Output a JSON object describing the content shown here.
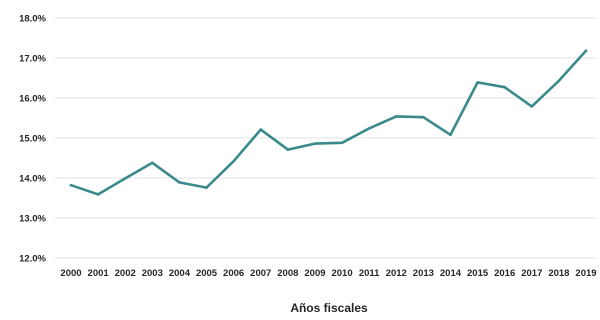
{
  "chart_data": {
    "type": "line",
    "title": "",
    "xlabel": "Años fiscales",
    "ylabel": "",
    "ylim": [
      12.0,
      18.0
    ],
    "yticks": [
      12.0,
      13.0,
      14.0,
      15.0,
      16.0,
      17.0,
      18.0
    ],
    "ytick_labels": [
      "12.0%",
      "13.0%",
      "14.0%",
      "15.0%",
      "16.0%",
      "17.0%",
      "18.0%"
    ],
    "grid": true,
    "legend": "none",
    "line_color": "#3a8a8c",
    "grid_color": "#e3e3e3",
    "categories": [
      "2000",
      "2001",
      "2002",
      "2003",
      "2004",
      "2005",
      "2006",
      "2007",
      "2008",
      "2009",
      "2010",
      "2011",
      "2012",
      "2013",
      "2014",
      "2015",
      "2016",
      "2017",
      "2018",
      "2019"
    ],
    "series": [
      {
        "values": [
          13.82,
          13.59,
          13.99,
          14.38,
          13.89,
          13.76,
          14.42,
          15.21,
          14.71,
          14.86,
          14.88,
          15.24,
          15.54,
          15.52,
          15.08,
          16.39,
          16.27,
          15.79,
          16.43,
          17.18
        ]
      }
    ]
  }
}
